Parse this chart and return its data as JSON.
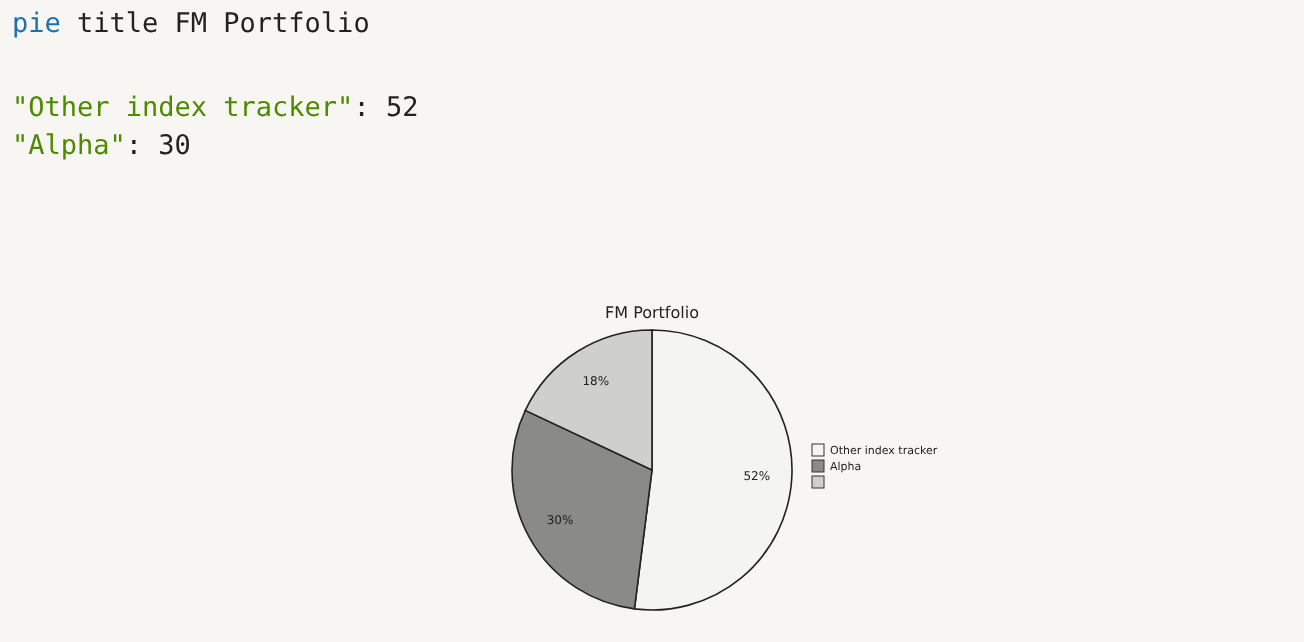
{
  "chart_data": {
    "type": "pie",
    "title": "FM Portfolio",
    "categories": [
      "Other index tracker",
      "Alpha",
      null
    ],
    "values": [
      52,
      30,
      18
    ],
    "colors": [
      "#f4f4f2",
      "#8a8a86",
      "#cfcfcc"
    ],
    "value_labels": [
      "52%",
      "30%",
      "18%"
    ],
    "legend": "right",
    "annotations": [
      "pie title FM Portfolio",
      "\"Other index tracker\": 52",
      "\"Alpha\": 30"
    ]
  }
}
